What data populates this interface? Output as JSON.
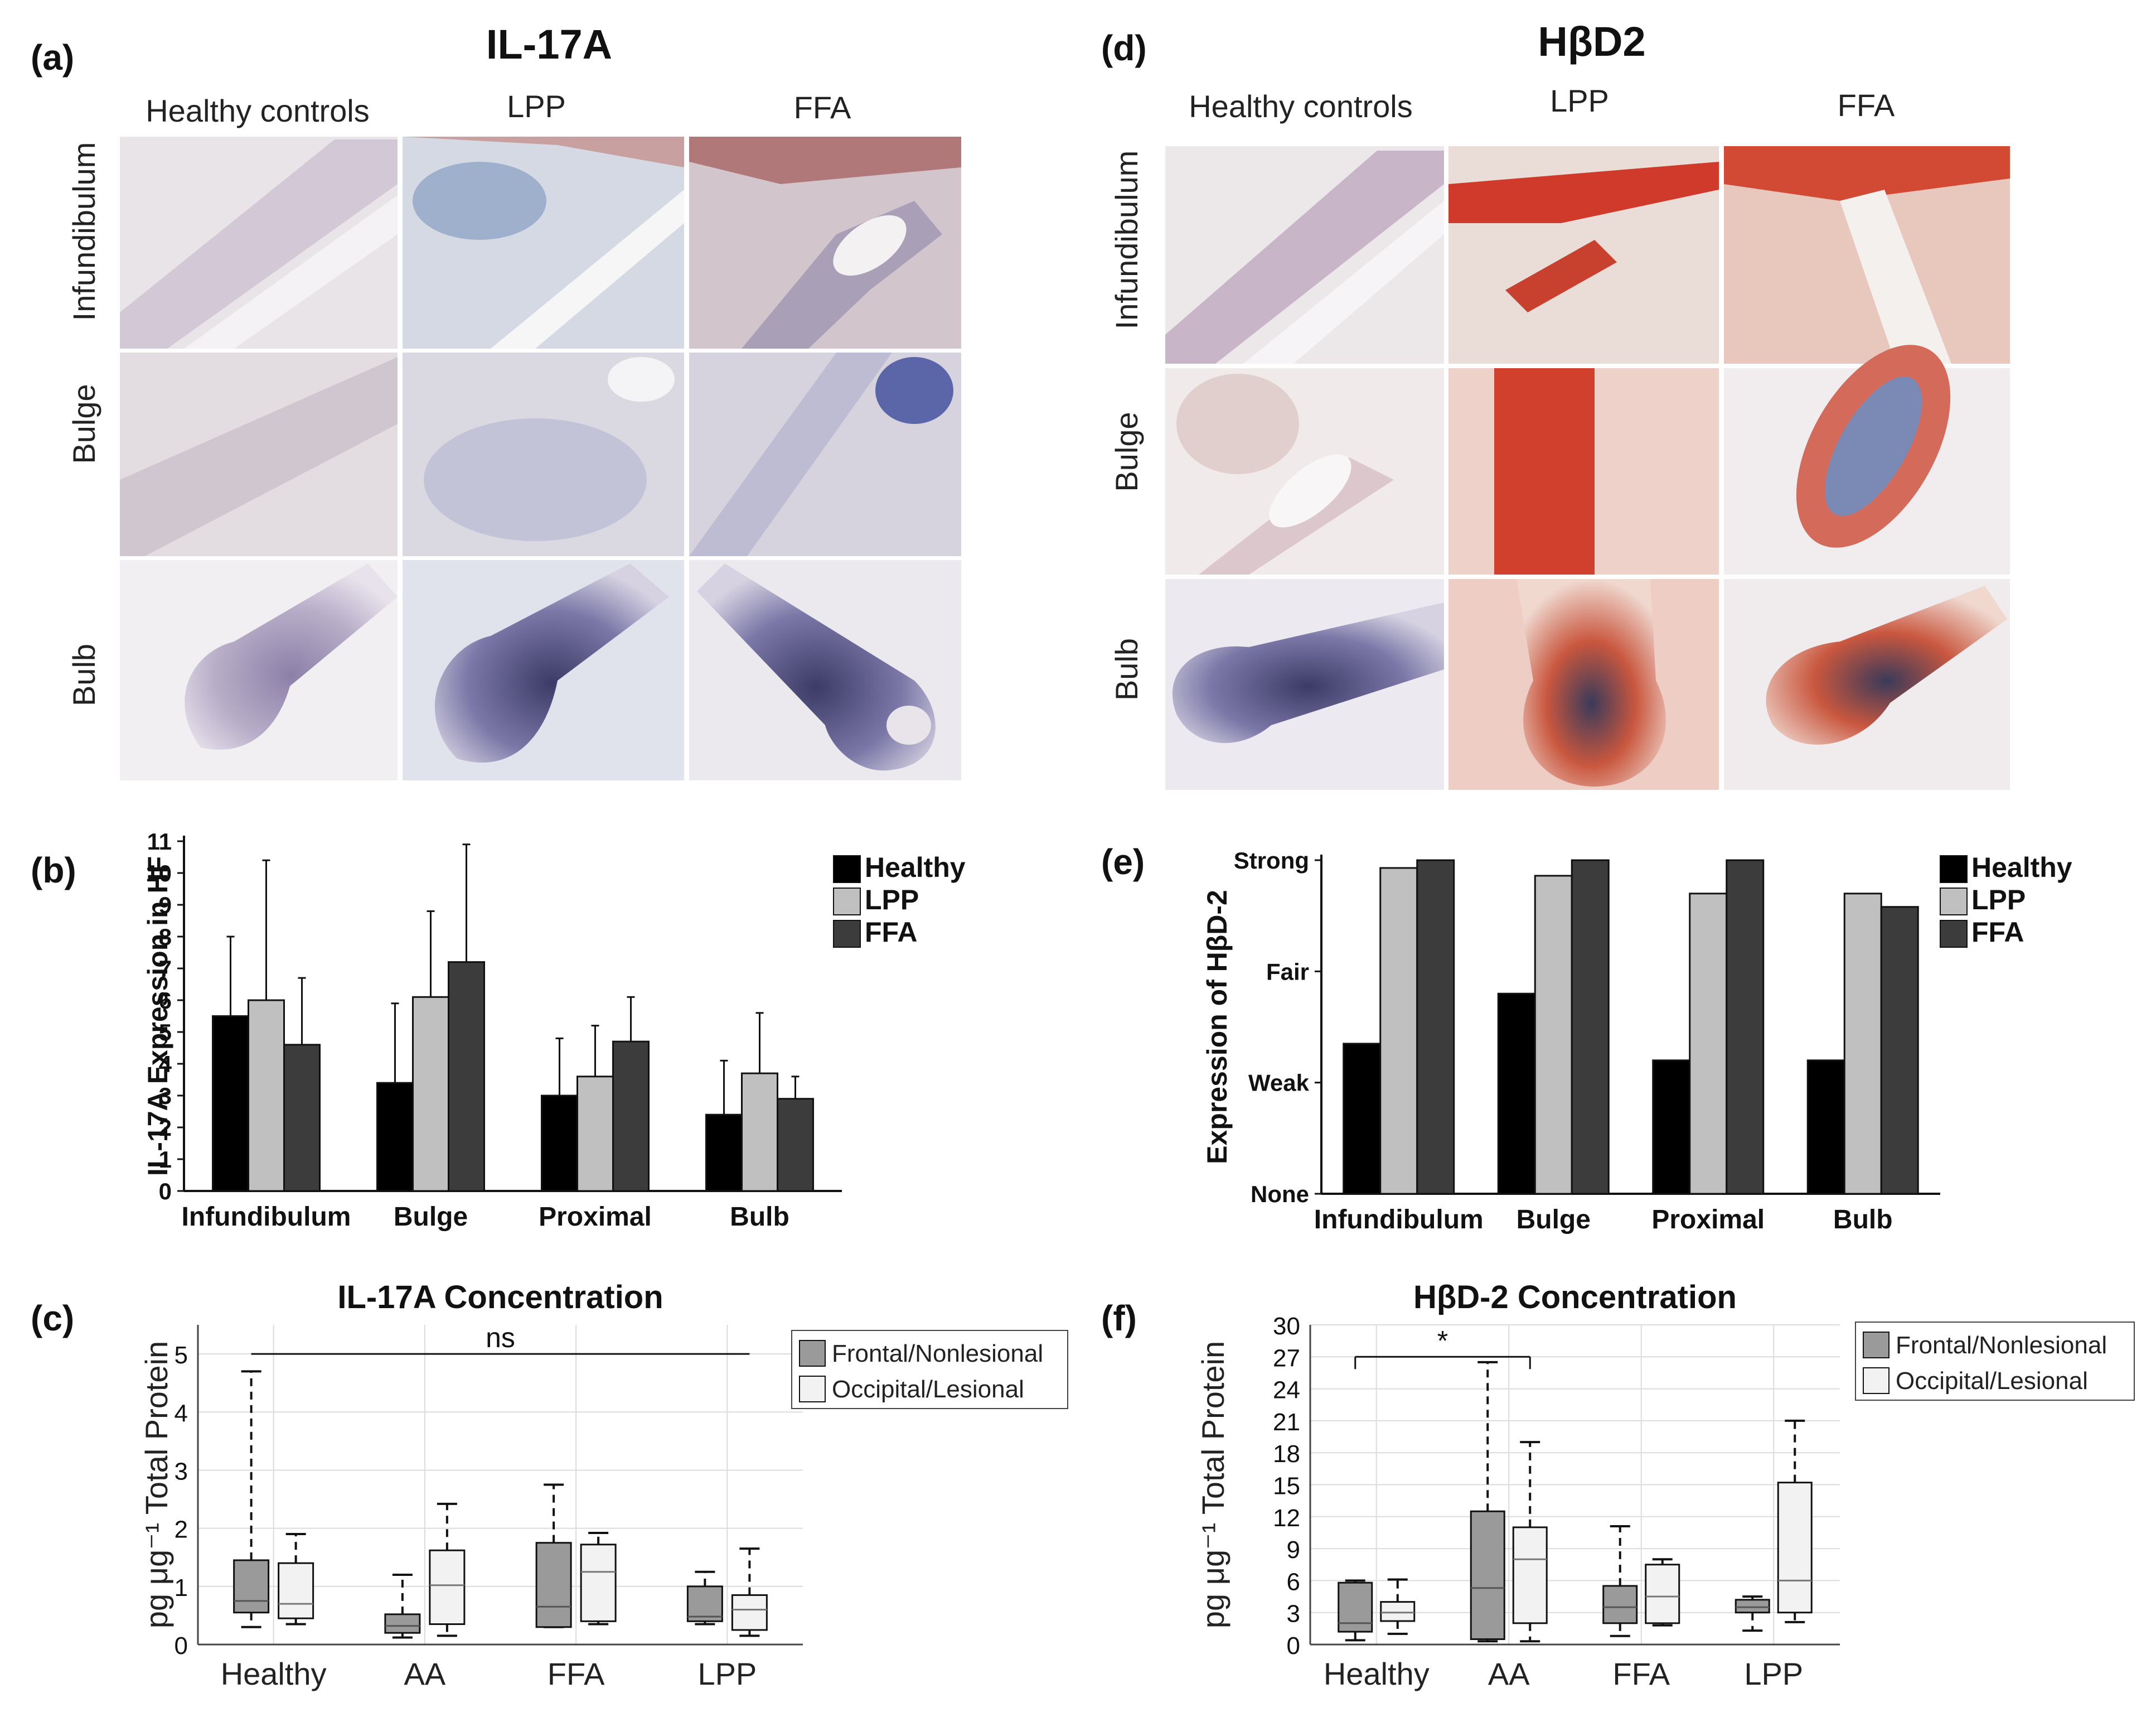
{
  "colors": {
    "healthy": "#000000",
    "lpp": "#c0c0c0",
    "ffa": "#3c3c3c",
    "frontal": "#9a9a9a",
    "occipital": "#f2f2f2"
  },
  "panels": {
    "a": {
      "letter": "(a)",
      "title": "IL-17A"
    },
    "b": {
      "letter": "(b)"
    },
    "c": {
      "letter": "(c)"
    },
    "d": {
      "letter": "(d)",
      "title": "HβD2"
    },
    "e": {
      "letter": "(e)"
    },
    "f": {
      "letter": "(f)"
    }
  },
  "histology": {
    "columns": [
      "Healthy controls",
      "LPP",
      "FFA"
    ],
    "rows": [
      "Infundibulum",
      "Bulge",
      "Bulb"
    ]
  },
  "chart_data": [
    {
      "id": "b",
      "type": "bar",
      "title": "",
      "ylabel": "IL-17A Expression in HF",
      "xlabel": "",
      "ylim": [
        0,
        11
      ],
      "yticks": [
        0,
        1,
        2,
        3,
        4,
        5,
        6,
        7,
        8,
        9,
        10,
        11
      ],
      "categories": [
        "Infundibulum",
        "Bulge",
        "Proximal",
        "Bulb"
      ],
      "series": [
        {
          "name": "Healthy",
          "values": [
            5.5,
            3.4,
            3.0,
            2.4
          ],
          "errors": [
            2.5,
            2.5,
            1.8,
            1.7
          ]
        },
        {
          "name": "LPP",
          "values": [
            6.0,
            6.1,
            3.6,
            3.7
          ],
          "errors": [
            4.4,
            2.7,
            1.6,
            1.9
          ]
        },
        {
          "name": "FFA",
          "values": [
            4.6,
            7.2,
            4.7,
            2.9
          ],
          "errors": [
            2.1,
            3.7,
            1.4,
            0.7
          ]
        }
      ],
      "legend": "top-right"
    },
    {
      "id": "e",
      "type": "bar",
      "title": "",
      "ylabel": "Expression of HβD-2",
      "xlabel": "",
      "ylim": [
        0,
        3
      ],
      "ytick_values": [
        0,
        1,
        2,
        3
      ],
      "ytick_labels": [
        "None",
        "Weak",
        "Fair",
        "Strong"
      ],
      "categories": [
        "Infundibulum",
        "Bulge",
        "Proximal",
        "Bulb"
      ],
      "series": [
        {
          "name": "Healthy",
          "values": [
            1.35,
            1.8,
            1.2,
            1.2
          ]
        },
        {
          "name": "LPP",
          "values": [
            2.93,
            2.86,
            2.7,
            2.7
          ]
        },
        {
          "name": "FFA",
          "values": [
            3.0,
            3.0,
            3.0,
            2.58
          ]
        }
      ],
      "legend": "top-right"
    },
    {
      "id": "c",
      "type": "box",
      "title": "IL-17A Concentration",
      "ylabel": "pg μg⁻¹ Total Protein",
      "ylim": [
        0,
        5.5
      ],
      "yticks": [
        0,
        1,
        2,
        3,
        4,
        5
      ],
      "categories": [
        "Healthy",
        "AA",
        "FFA",
        "LPP"
      ],
      "series": [
        {
          "name": "Frontal/Nonlesional",
          "boxes": [
            {
              "min": 0.3,
              "q1": 0.55,
              "median": 0.75,
              "q3": 1.45,
              "max": 4.7
            },
            {
              "min": 0.12,
              "q1": 0.2,
              "median": 0.32,
              "q3": 0.52,
              "max": 1.2
            },
            {
              "min": 0.3,
              "q1": 0.3,
              "median": 0.65,
              "q3": 1.75,
              "max": 2.75
            },
            {
              "min": 0.35,
              "q1": 0.4,
              "median": 0.48,
              "q3": 1.0,
              "max": 1.25
            }
          ]
        },
        {
          "name": "Occipital/Lesional",
          "boxes": [
            {
              "min": 0.35,
              "q1": 0.45,
              "median": 0.7,
              "q3": 1.4,
              "max": 1.9
            },
            {
              "min": 0.15,
              "q1": 0.35,
              "median": 1.02,
              "q3": 1.62,
              "max": 2.42
            },
            {
              "min": 0.35,
              "q1": 0.4,
              "median": 1.25,
              "q3": 1.72,
              "max": 1.92
            },
            {
              "min": 0.15,
              "q1": 0.25,
              "median": 0.6,
              "q3": 0.85,
              "max": 1.65
            }
          ]
        }
      ],
      "annotation": {
        "text": "ns",
        "from": "Healthy",
        "to": "LPP",
        "y": 5.0
      },
      "legend": "top-right"
    },
    {
      "id": "f",
      "type": "box",
      "title": "HβD-2 Concentration",
      "ylabel": "pg μg⁻¹ Total Protein",
      "ylim": [
        0,
        30
      ],
      "yticks": [
        0,
        3,
        6,
        9,
        12,
        15,
        18,
        21,
        24,
        27,
        30
      ],
      "categories": [
        "Healthy",
        "AA",
        "FFA",
        "LPP"
      ],
      "series": [
        {
          "name": "Frontal/Nonlesional",
          "boxes": [
            {
              "min": 0.4,
              "q1": 1.2,
              "median": 2.0,
              "q3": 5.8,
              "max": 6.0
            },
            {
              "min": 0.3,
              "q1": 0.5,
              "median": 5.3,
              "q3": 12.5,
              "max": 26.5
            },
            {
              "min": 0.8,
              "q1": 2.0,
              "median": 3.5,
              "q3": 5.5,
              "max": 11.1
            },
            {
              "min": 1.3,
              "q1": 3.0,
              "median": 3.5,
              "q3": 4.2,
              "max": 4.5
            }
          ]
        },
        {
          "name": "Occipital/Lesional",
          "boxes": [
            {
              "min": 1.0,
              "q1": 2.2,
              "median": 3.0,
              "q3": 4.0,
              "max": 6.1
            },
            {
              "min": 0.3,
              "q1": 2.0,
              "median": 8.0,
              "q3": 11.0,
              "max": 19.0
            },
            {
              "min": 1.8,
              "q1": 2.0,
              "median": 4.5,
              "q3": 7.5,
              "max": 8.0
            },
            {
              "min": 2.1,
              "q1": 3.0,
              "median": 6.0,
              "q3": 15.2,
              "max": 21.0
            }
          ]
        }
      ],
      "annotation": {
        "text": "*",
        "from": "Healthy",
        "to": "AA",
        "y": 27.0
      },
      "legend": "top-right"
    }
  ]
}
